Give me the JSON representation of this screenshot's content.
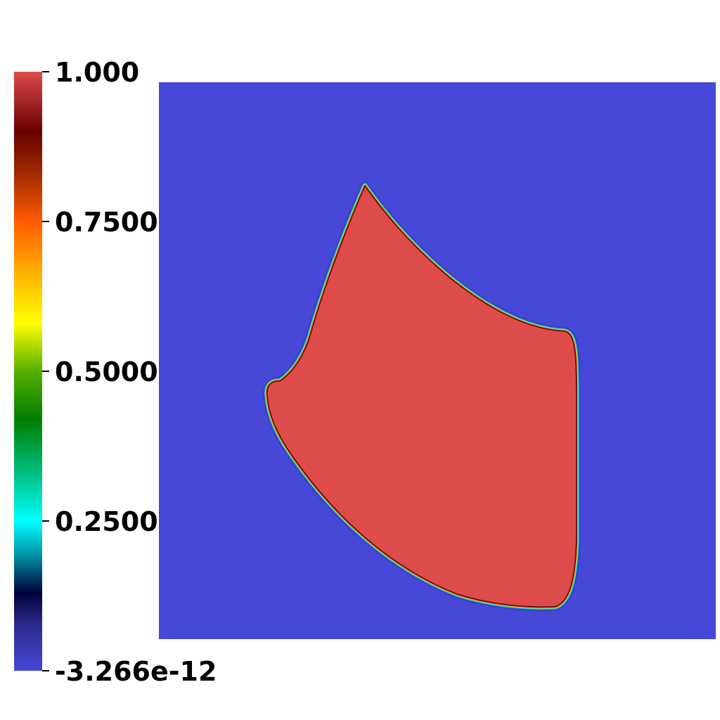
{
  "chart_data": {
    "type": "heatmap",
    "colorbar": {
      "min_label": "-3.266e-12",
      "max_label": "1.000",
      "min": -3.266e-12,
      "max": 1.0,
      "ticks": [
        {
          "value": 1.0,
          "label": "1.000"
        },
        {
          "value": 0.75,
          "label": "0.7500"
        },
        {
          "value": 0.5,
          "label": "0.5000"
        },
        {
          "value": 0.25,
          "label": "0.2500"
        },
        {
          "value": -3.266e-12,
          "label": "-3.266e-12"
        }
      ],
      "colormap_stops": [
        {
          "value": 0.0,
          "color": "#4646d8"
        },
        {
          "value": 0.08,
          "color": "#2a2a8a"
        },
        {
          "value": 0.13,
          "color": "#00003a"
        },
        {
          "value": 0.19,
          "color": "#008ba0"
        },
        {
          "value": 0.25,
          "color": "#00ffff"
        },
        {
          "value": 0.33,
          "color": "#00c080"
        },
        {
          "value": 0.42,
          "color": "#007e00"
        },
        {
          "value": 0.5,
          "color": "#55b000"
        },
        {
          "value": 0.58,
          "color": "#ffff00"
        },
        {
          "value": 0.67,
          "color": "#ffaa00"
        },
        {
          "value": 0.75,
          "color": "#ff5a00"
        },
        {
          "value": 0.83,
          "color": "#a02a00"
        },
        {
          "value": 0.9,
          "color": "#690000"
        },
        {
          "value": 1.0,
          "color": "#dd4b4b"
        }
      ]
    },
    "field": {
      "background_value": 0.0,
      "region_value": 1.0,
      "background_color": "#4747d8",
      "region_color": "#dd4b4b"
    }
  }
}
